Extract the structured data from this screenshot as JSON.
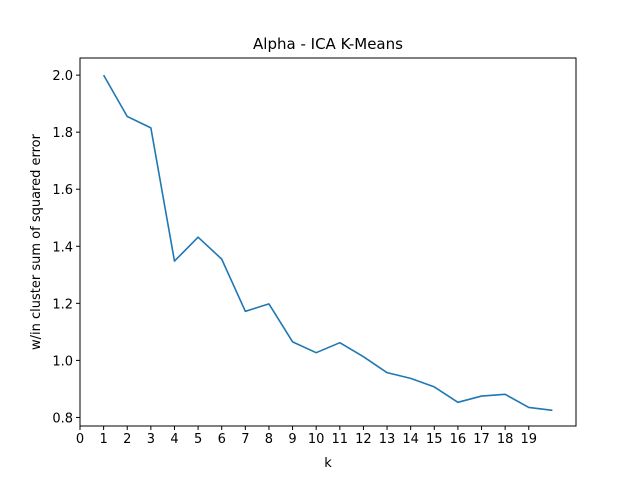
{
  "chart_data": {
    "type": "line",
    "title": "Alpha - ICA K-Means",
    "xlabel": "k",
    "ylabel": "w/in cluster sum of squared error",
    "x": [
      1,
      2,
      3,
      4,
      5,
      6,
      7,
      8,
      9,
      10,
      11,
      12,
      13,
      14,
      15,
      16,
      17,
      18,
      19,
      20
    ],
    "series": [
      {
        "values": [
          2.0,
          1.855,
          1.815,
          1.348,
          1.432,
          1.355,
          1.172,
          1.198,
          1.065,
          1.027,
          1.062,
          1.013,
          0.957,
          0.937,
          0.907,
          0.853,
          0.875,
          0.881,
          0.835,
          0.825
        ]
      }
    ],
    "xticks": [
      "0",
      "1",
      "2",
      "3",
      "4",
      "5",
      "6",
      "7",
      "8",
      "9",
      "10",
      "11",
      "12",
      "13",
      "14",
      "15",
      "16",
      "17",
      "18",
      "19"
    ],
    "yticks": [
      "0.8",
      "1.0",
      "1.2",
      "1.4",
      "1.6",
      "1.8",
      "2.0"
    ],
    "xlim": [
      0,
      21
    ],
    "ylim": [
      0.77,
      2.06
    ],
    "grid": false,
    "colors": {
      "line": "#1f77b4",
      "axis": "#000000"
    }
  }
}
